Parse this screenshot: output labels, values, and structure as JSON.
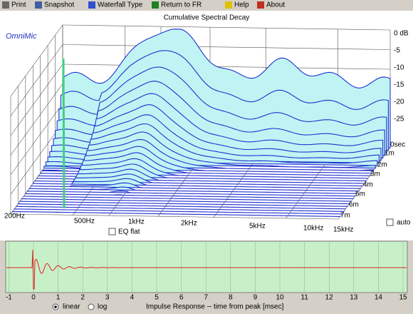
{
  "toolbar": {
    "items": [
      "Print",
      "Snapshot",
      "Waterfall Type",
      "Return to FR",
      "Help",
      "About"
    ]
  },
  "plot": {
    "title": "Cumulative Spectral Decay",
    "brand": "OmniMic",
    "db_labels": [
      "0 dB",
      "-5",
      "-10",
      "-15",
      "-20",
      "-25"
    ],
    "time_labels": [
      "0sec",
      "1m",
      "2m",
      "3m",
      "4m",
      "5m",
      "6m",
      "7m"
    ],
    "freq_labels": [
      "200Hz",
      "500Hz",
      "1kHz",
      "2kHz",
      "5kHz",
      "10kHz",
      "15kHz"
    ]
  },
  "controls": {
    "eq_flat": "EQ flat",
    "auto": "auto"
  },
  "impulse": {
    "x_labels": [
      "-1",
      "0",
      "1",
      "2",
      "3",
      "4",
      "5",
      "6",
      "7",
      "8",
      "9",
      "10",
      "11",
      "12",
      "13",
      "14",
      "15"
    ],
    "modes": [
      "linear",
      "log"
    ],
    "caption": "Impulse Response -- time from peak [msec]"
  }
}
